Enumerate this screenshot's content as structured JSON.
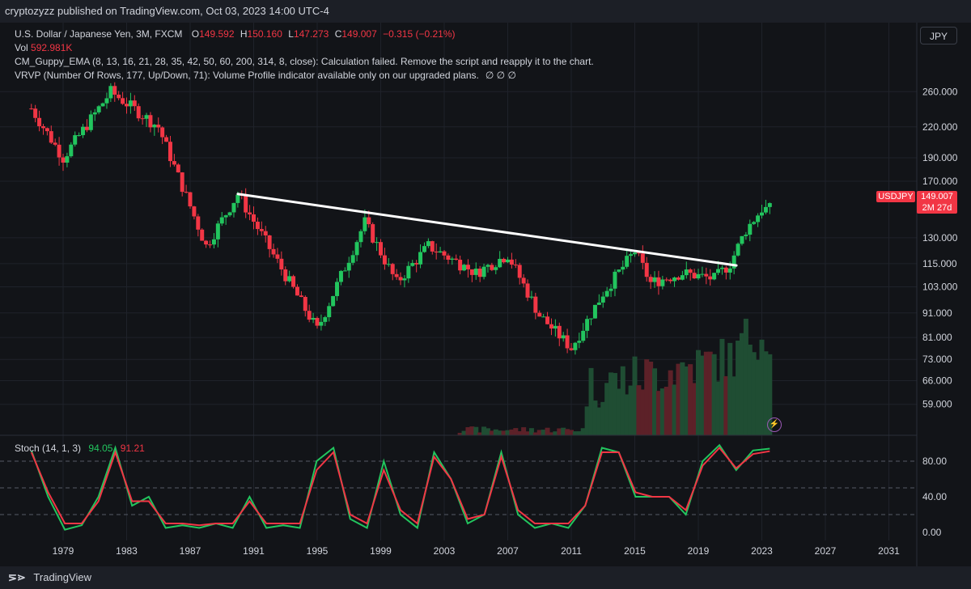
{
  "topbar": {
    "text": "cryptozyzz published on TradingView.com, Oct 03, 2023 14:00 UTC-4"
  },
  "legend": {
    "symbol": "U.S. Dollar / Japanese Yen, 3M, FXCM",
    "o_label": "O",
    "o": "149.592",
    "h_label": "H",
    "h": "150.160",
    "l_label": "L",
    "l": "147.273",
    "c_label": "C",
    "c": "149.007",
    "chg": "−0.315 (−0.21%)",
    "vol_label": "Vol",
    "vol": "592.981K",
    "guppy": "CM_Guppy_EMA (8, 13, 16, 21, 28, 35, 42, 50, 60, 200, 314, 8, close): Calculation failed. Remove the script and reapply it to the chart.",
    "vrvp": "VRVP (Number Of Rows, 177, Up/Down, 71): Volume Profile indicator available only on our upgraded plans.",
    "x_marks": "∅  ∅  ∅"
  },
  "currency_button": "JPY",
  "symbol_tag": "USDJPY",
  "price_tag": {
    "price": "149.007",
    "countdown": "2M 27d"
  },
  "stoch_legend": {
    "name": "Stoch (14, 1, 3)",
    "k": "94.05",
    "d": "91.21"
  },
  "bottombar": {
    "logo": "⋝⋗",
    "name": "TradingView"
  },
  "colors": {
    "up": "#22c55e",
    "down": "#f23645",
    "bg": "#121418",
    "grid": "#1f222a",
    "trendline": "#ffffff"
  },
  "chart_data": {
    "type": "candlestick",
    "title": "U.S. Dollar / Japanese Yen, 3M, FXCM",
    "price_axis": {
      "scale": "log",
      "ticks": [
        "260.000",
        "220.000",
        "190.000",
        "170.000",
        "130.000",
        "115.000",
        "103.000",
        "91.000",
        "81.000",
        "73.000",
        "66.000",
        "59.000"
      ]
    },
    "x_axis": {
      "ticks": [
        "1979",
        "1983",
        "1987",
        "1991",
        "1995",
        "1999",
        "2003",
        "2007",
        "2011",
        "2015",
        "2019",
        "2023",
        "2027",
        "2031"
      ]
    },
    "ohlc_sample": {
      "dates": [
        "1977",
        "1979",
        "1982",
        "1985",
        "1988",
        "1990",
        "1995",
        "1998",
        "2000",
        "2002",
        "2005",
        "2007",
        "2009",
        "2011",
        "2013",
        "2015",
        "2016",
        "2018",
        "2020",
        "2021",
        "2022",
        "2023"
      ],
      "close": [
        240,
        190,
        260,
        220,
        125,
        160,
        84,
        140,
        105,
        125,
        110,
        120,
        90,
        77,
        100,
        122,
        105,
        110,
        107,
        115,
        135,
        149
      ]
    },
    "trendline": {
      "from": {
        "date": "1990",
        "price": 160
      },
      "to": {
        "date": "2021",
        "price": 114
      }
    },
    "last_price": 149.007,
    "stoch": {
      "name": "Stoch (14, 1, 3)",
      "k": [
        92,
        40,
        3,
        8,
        40,
        95,
        30,
        40,
        5,
        8,
        5,
        10,
        5,
        40,
        5,
        8,
        5,
        80,
        95,
        15,
        5,
        80,
        20,
        5,
        90,
        60,
        10,
        20,
        90,
        20,
        5,
        10,
        5,
        30,
        95,
        90,
        40,
        40,
        40,
        20,
        80,
        98,
        70,
        92,
        94.05
      ],
      "d": [
        90,
        45,
        10,
        10,
        35,
        90,
        35,
        35,
        10,
        10,
        8,
        10,
        10,
        35,
        10,
        10,
        10,
        70,
        90,
        20,
        10,
        70,
        25,
        10,
        85,
        60,
        15,
        20,
        85,
        25,
        10,
        10,
        10,
        30,
        90,
        90,
        45,
        40,
        40,
        25,
        75,
        95,
        72,
        88,
        91.21
      ],
      "ticks": [
        "80.00",
        "40.00",
        "0.00"
      ],
      "levels": [
        80,
        50,
        20
      ]
    }
  }
}
